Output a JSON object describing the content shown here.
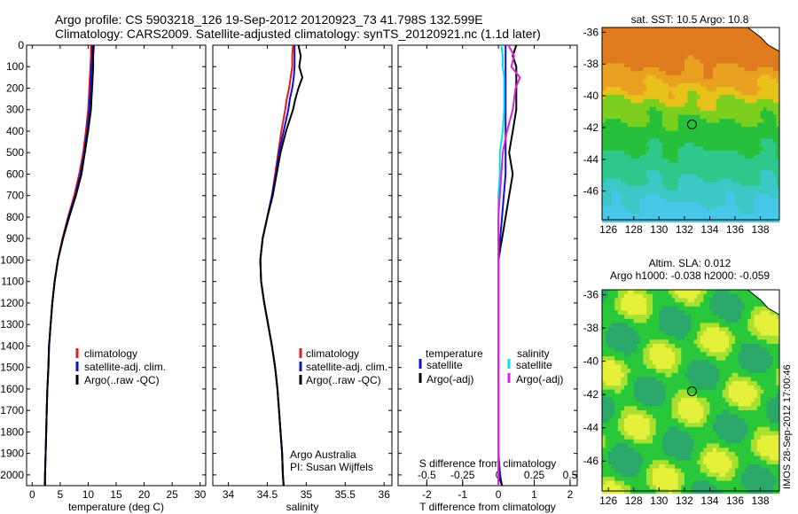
{
  "header": {
    "line1": "Argo profile: CS 5903218_126 19-Sep-2012 20120923_73 41.798S 132.599E",
    "line2": "Climatology: CARS2009. Satellite-adjusted climatology: synTS_20120921.nc (1.1d later)"
  },
  "colors": {
    "climatology": "#e41a1c",
    "satellite": "#1010d0",
    "argo": "#000000",
    "satellite_s": "#00e0e8",
    "argo_s": "#e020e0"
  },
  "legend": {
    "climatology": "climatology",
    "satellite": "satellite-adj. clim.",
    "argo": "Argo(..raw -QC)",
    "diff_temperature_header": "temperature",
    "diff_salinity_header": "salinity",
    "diff_satellite": "satellite",
    "diff_argo": "Argo(-adj)"
  },
  "credits": {
    "line1": "Argo Australia",
    "line2": "PI: Susan Wijffels"
  },
  "side_stamp": "IMOS 28-Sep-2012 17:00:46",
  "map_titles": {
    "sst": "sat. SST: 10.5 Argo: 10.8",
    "sla1": "Altim. SLA: 0.012",
    "sla2": "Argo h1000: -0.038 h2000: -0.059"
  },
  "chart_data": [
    {
      "type": "line",
      "xlabel": "temperature (deg C)",
      "ylabel": "",
      "xlim": [
        -1,
        31
      ],
      "ylim": [
        2050,
        0
      ],
      "xticks": [
        0,
        5,
        10,
        15,
        20,
        25,
        30
      ],
      "yticks": [
        0,
        100,
        200,
        300,
        400,
        500,
        600,
        700,
        800,
        900,
        1000,
        1100,
        1200,
        1300,
        1400,
        1500,
        1600,
        1700,
        1800,
        1900,
        2000
      ],
      "depth": [
        0,
        50,
        100,
        150,
        200,
        250,
        300,
        400,
        500,
        600,
        700,
        800,
        900,
        1000,
        1100,
        1200,
        1300,
        1400,
        1500,
        1600,
        1700,
        1800,
        1900,
        2000,
        2050
      ],
      "series": [
        {
          "name": "climatology",
          "values": [
            10.5,
            10.5,
            10.4,
            10.3,
            10.2,
            10.1,
            10.0,
            9.6,
            9.1,
            8.4,
            7.5,
            6.4,
            5.4,
            4.6,
            4.0,
            3.6,
            3.3,
            3.0,
            2.9,
            2.7,
            2.6,
            2.5,
            2.4,
            2.3,
            2.2
          ]
        },
        {
          "name": "satellite-adj. clim.",
          "values": [
            10.7,
            10.7,
            10.6,
            10.5,
            10.4,
            10.3,
            10.2,
            9.8,
            9.3,
            8.6,
            7.7,
            6.5,
            5.5,
            4.6,
            4.0,
            3.6,
            3.3,
            3.0,
            2.9,
            2.7,
            2.6,
            2.5,
            2.4,
            2.3,
            2.3
          ]
        },
        {
          "name": "Argo(..raw -QC)",
          "values": [
            11.0,
            10.9,
            10.9,
            10.8,
            10.7,
            10.6,
            10.5,
            10.0,
            9.4,
            8.8,
            7.8,
            6.6,
            5.5,
            4.6,
            4.0,
            3.6,
            3.3,
            3.0,
            2.9,
            2.7,
            2.6,
            2.5,
            2.4,
            2.3,
            2.3
          ]
        }
      ]
    },
    {
      "type": "line",
      "xlabel": "salinity",
      "ylabel": "",
      "xlim": [
        33.8,
        36.1
      ],
      "ylim": [
        2050,
        0
      ],
      "xticks": [
        34,
        34.5,
        35,
        35.5,
        36
      ],
      "depth": [
        0,
        50,
        100,
        150,
        200,
        250,
        300,
        400,
        500,
        600,
        700,
        800,
        900,
        1000,
        1100,
        1200,
        1300,
        1400,
        1500,
        1600,
        1700,
        1800,
        1900,
        2000,
        2050
      ],
      "series": [
        {
          "name": "climatology",
          "values": [
            34.83,
            34.82,
            34.82,
            34.8,
            34.78,
            34.75,
            34.73,
            34.68,
            34.64,
            34.6,
            34.56,
            34.5,
            34.44,
            34.41,
            34.42,
            34.46,
            34.51,
            34.56,
            34.6,
            34.63,
            34.65,
            34.67,
            34.69,
            34.7,
            34.71
          ]
        },
        {
          "name": "satellite-adj. clim.",
          "values": [
            34.85,
            34.85,
            34.85,
            34.84,
            34.82,
            34.79,
            34.77,
            34.71,
            34.65,
            34.61,
            34.56,
            34.5,
            34.44,
            34.41,
            34.42,
            34.46,
            34.51,
            34.56,
            34.6,
            34.63,
            34.65,
            34.67,
            34.69,
            34.7,
            34.71
          ]
        },
        {
          "name": "Argo(..raw -QC)",
          "values": [
            34.9,
            34.93,
            34.91,
            34.95,
            34.9,
            34.86,
            34.83,
            34.74,
            34.67,
            34.62,
            34.57,
            34.5,
            34.44,
            34.41,
            34.42,
            34.46,
            34.51,
            34.56,
            34.6,
            34.63,
            34.65,
            34.67,
            34.69,
            34.7,
            34.71
          ]
        }
      ]
    },
    {
      "type": "line",
      "xlabel": "T difference from climatology",
      "x2label": "S difference from climatology",
      "ylabel": "",
      "xlim": [
        -2.8,
        2.2
      ],
      "x2lim": [
        -0.7,
        0.55
      ],
      "ylim": [
        2050,
        0
      ],
      "xticks": [
        -2,
        -1,
        0,
        1,
        2
      ],
      "x2ticks": [
        -0.5,
        -0.25,
        0,
        0.25,
        0.5
      ],
      "depth": [
        0,
        50,
        100,
        150,
        200,
        250,
        300,
        400,
        500,
        600,
        700,
        800,
        900,
        1000,
        1100,
        1200,
        1300,
        1400,
        1500,
        1600,
        1700,
        1800,
        1900,
        2000,
        2050
      ],
      "series": [
        {
          "name": "temperature satellite",
          "axis": "T",
          "values": [
            0.2,
            0.2,
            0.2,
            0.2,
            0.2,
            0.2,
            0.2,
            0.2,
            0.2,
            0.2,
            0.15,
            0.1,
            0.05,
            0.0,
            0.0,
            0.0,
            0.0,
            0.0,
            0.0,
            0.0,
            0.0,
            0.0,
            0.0,
            0.05,
            0.1
          ]
        },
        {
          "name": "temperature Argo(-adj)",
          "axis": "T",
          "values": [
            0.5,
            0.4,
            0.5,
            0.5,
            0.5,
            0.5,
            0.5,
            0.4,
            0.3,
            0.4,
            0.3,
            0.2,
            0.1,
            0.0,
            0.0,
            0.0,
            0.0,
            0.0,
            0.0,
            0.0,
            0.0,
            0.0,
            0.0,
            0.0,
            0.1
          ]
        },
        {
          "name": "salinity satellite",
          "axis": "S",
          "values": [
            0.02,
            0.03,
            0.03,
            0.04,
            0.04,
            0.04,
            0.04,
            0.03,
            0.01,
            0.01,
            0.0,
            0.0,
            0.0,
            0.0,
            0.0,
            0.0,
            0.0,
            0.0,
            0.0,
            0.0,
            0.0,
            0.0,
            0.0,
            0.0,
            0.0
          ]
        },
        {
          "name": "salinity Argo(-adj)",
          "axis": "S",
          "values": [
            0.07,
            0.11,
            0.09,
            0.15,
            0.12,
            0.11,
            0.1,
            0.06,
            0.03,
            0.02,
            0.01,
            0.0,
            0.0,
            0.0,
            0.0,
            0.0,
            0.0,
            0.0,
            0.0,
            0.0,
            0.0,
            0.0,
            0.0,
            0.0,
            0.0
          ]
        }
      ]
    },
    {
      "type": "heatmap",
      "title": "sat. SST: 10.5 Argo: 10.8",
      "xlim": [
        125.5,
        139.5
      ],
      "ylim": [
        -47.8,
        -35.7
      ],
      "xticks": [
        126,
        128,
        130,
        132,
        134,
        136,
        138
      ],
      "yticks": [
        -36,
        -38,
        -40,
        -42,
        -44,
        -46
      ],
      "float_marker": {
        "lon": 132.6,
        "lat": -41.8
      }
    },
    {
      "type": "heatmap",
      "title": "Altim. SLA: 0.012",
      "xlim": [
        125.5,
        139.5
      ],
      "ylim": [
        -47.8,
        -35.7
      ],
      "xticks": [
        126,
        128,
        130,
        132,
        134,
        136,
        138
      ],
      "yticks": [
        -36,
        -38,
        -40,
        -42,
        -44,
        -46
      ],
      "float_marker": {
        "lon": 132.6,
        "lat": -41.8
      }
    }
  ]
}
